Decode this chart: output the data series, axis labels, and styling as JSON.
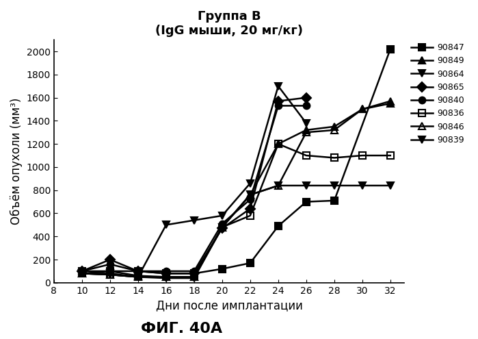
{
  "title_line1": "Группа В",
  "title_line2": "(IgG мыши, 20 мг/кг)",
  "xlabel": "Дни после имплантации",
  "ylabel": "Объём опухоли (мм³)",
  "fig_label": "ФИГ. 40А",
  "xlim": [
    8,
    33
  ],
  "ylim": [
    0,
    2100
  ],
  "xticks": [
    8,
    10,
    12,
    14,
    16,
    18,
    20,
    22,
    24,
    26,
    28,
    30,
    32
  ],
  "yticks": [
    0,
    200,
    400,
    600,
    800,
    1000,
    1200,
    1400,
    1600,
    1800,
    2000
  ],
  "series": [
    {
      "label": "90847",
      "marker": "s",
      "fillstyle": "full",
      "x": [
        10,
        12,
        14,
        16,
        18,
        20,
        22,
        24,
        26,
        28,
        32
      ],
      "y": [
        100,
        100,
        100,
        80,
        80,
        120,
        170,
        490,
        700,
        710,
        2020
      ]
    },
    {
      "label": "90849",
      "marker": "^",
      "fillstyle": "full",
      "x": [
        10,
        12,
        14,
        16,
        18,
        20,
        22,
        24,
        26,
        28,
        30,
        32
      ],
      "y": [
        80,
        100,
        60,
        50,
        50,
        480,
        760,
        1200,
        1320,
        1350,
        1500,
        1550
      ]
    },
    {
      "label": "90864",
      "marker": "v",
      "fillstyle": "full",
      "x": [
        10,
        12,
        14,
        16,
        18,
        20,
        22,
        24,
        26,
        28,
        30,
        32
      ],
      "y": [
        80,
        80,
        50,
        40,
        40,
        480,
        760,
        840,
        840,
        840,
        840,
        840
      ]
    },
    {
      "label": "90865",
      "marker": "D",
      "fillstyle": "full",
      "x": [
        10,
        12,
        14,
        16,
        18,
        20,
        22,
        24,
        26
      ],
      "y": [
        100,
        200,
        100,
        80,
        80,
        470,
        640,
        1570,
        1600
      ]
    },
    {
      "label": "90840",
      "marker": "o",
      "fillstyle": "full",
      "x": [
        10,
        12,
        14,
        16,
        18,
        20,
        22,
        24,
        26
      ],
      "y": [
        100,
        160,
        100,
        100,
        100,
        510,
        720,
        1530,
        1530
      ]
    },
    {
      "label": "90836",
      "marker": "s",
      "fillstyle": "none",
      "x": [
        10,
        12,
        14,
        16,
        18,
        20,
        22,
        24,
        26,
        28,
        30,
        32
      ],
      "y": [
        80,
        70,
        50,
        50,
        50,
        480,
        580,
        1200,
        1100,
        1080,
        1100,
        1100
      ]
    },
    {
      "label": "90846",
      "marker": "^",
      "fillstyle": "none",
      "x": [
        10,
        12,
        14,
        16,
        18,
        20,
        22,
        24,
        26,
        28,
        30,
        32
      ],
      "y": [
        80,
        70,
        50,
        50,
        50,
        480,
        760,
        840,
        1300,
        1320,
        1500,
        1570
      ]
    },
    {
      "label": "90839",
      "marker": "v",
      "fillstyle": "full",
      "x": [
        10,
        12,
        14,
        16,
        18,
        20,
        22,
        24,
        26
      ],
      "y": [
        80,
        70,
        50,
        500,
        540,
        580,
        860,
        1700,
        1380
      ]
    }
  ],
  "color": "black",
  "linewidth": 1.8,
  "markersize": 7,
  "legend_fontsize": 9,
  "title_fontsize": 13,
  "axis_label_fontsize": 12,
  "tick_fontsize": 10,
  "fig_label_fontsize": 16
}
